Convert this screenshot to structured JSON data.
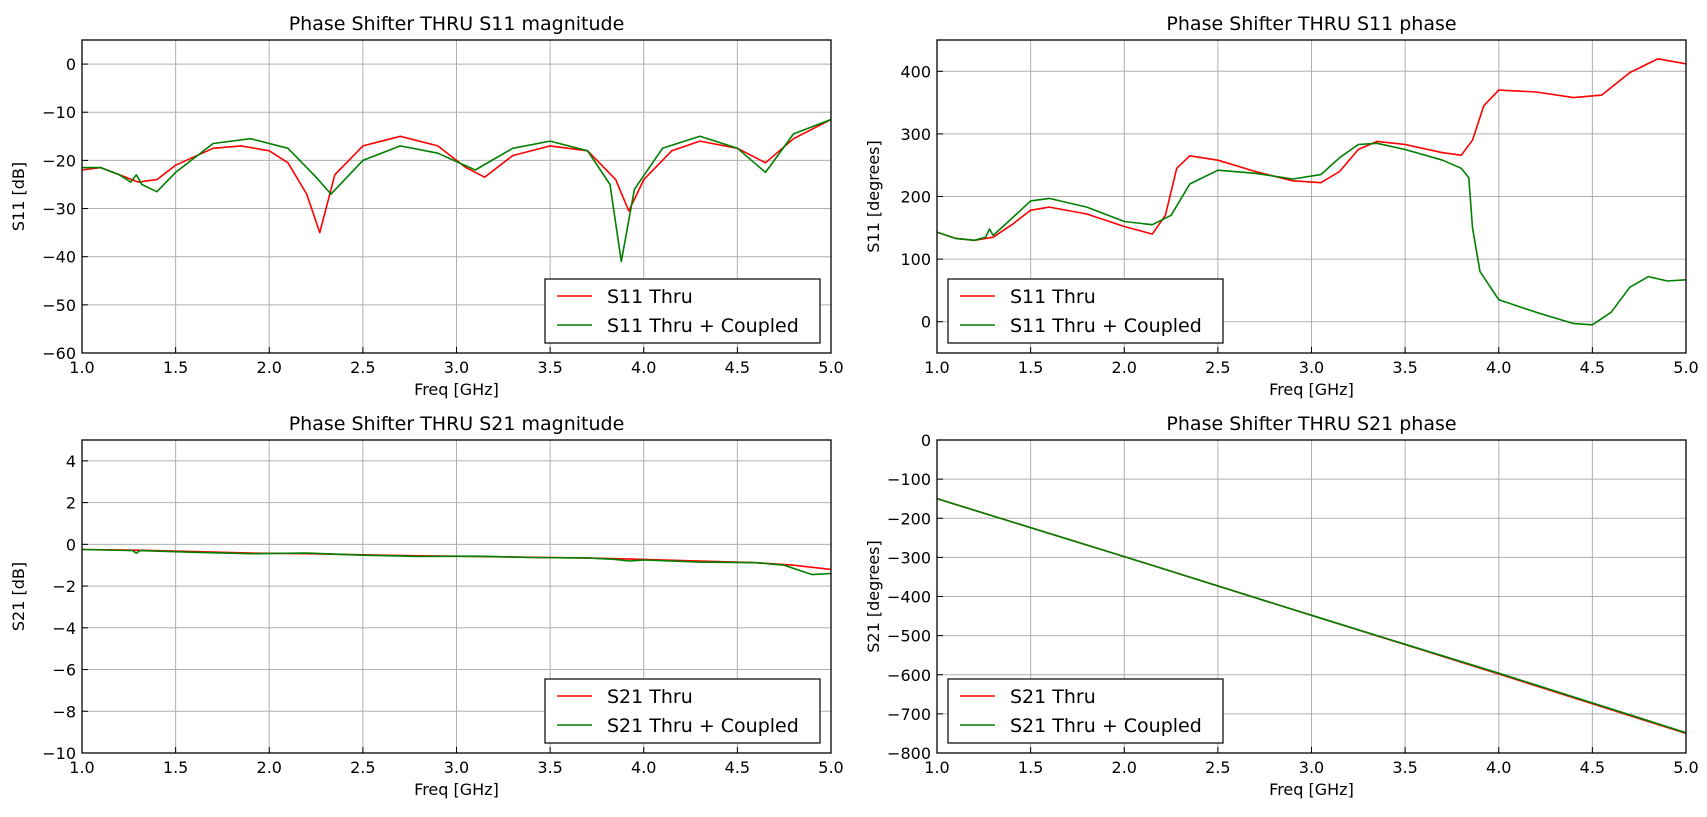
{
  "chart_data": [
    {
      "type": "line",
      "title": "Phase Shifter THRU S11 magnitude",
      "xlabel": "Freq [GHz]",
      "ylabel": "S11 [dB]",
      "xlim": [
        1.0,
        5.0
      ],
      "ylim": [
        -60,
        5
      ],
      "xticks": [
        1.0,
        1.5,
        2.0,
        2.5,
        3.0,
        3.5,
        4.0,
        4.5,
        5.0
      ],
      "yticks": [
        0,
        -10,
        -20,
        -30,
        -40,
        -50,
        -60
      ],
      "grid": true,
      "legend_position": "bottom-right",
      "series": [
        {
          "name": "S11 Thru",
          "color": "#ff0000",
          "x": [
            1.0,
            1.1,
            1.2,
            1.3,
            1.4,
            1.5,
            1.7,
            1.85,
            2.0,
            2.1,
            2.2,
            2.27,
            2.35,
            2.5,
            2.7,
            2.9,
            3.05,
            3.15,
            3.3,
            3.5,
            3.7,
            3.85,
            3.92,
            4.0,
            4.15,
            4.3,
            4.5,
            4.65,
            4.8,
            5.0
          ],
          "y": [
            -22,
            -21.5,
            -23,
            -24.5,
            -24,
            -21,
            -17.5,
            -17,
            -18,
            -20.5,
            -27,
            -35,
            -23,
            -17,
            -15,
            -17,
            -21.5,
            -23.5,
            -19,
            -17,
            -18,
            -24,
            -30.5,
            -24,
            -18,
            -16,
            -17.5,
            -20.5,
            -15.5,
            -11.5
          ]
        },
        {
          "name": "S11 Thru + Coupled",
          "color": "#007f00",
          "x": [
            1.0,
            1.1,
            1.2,
            1.26,
            1.29,
            1.32,
            1.4,
            1.5,
            1.7,
            1.9,
            2.1,
            2.25,
            2.33,
            2.5,
            2.7,
            2.9,
            3.1,
            3.3,
            3.5,
            3.7,
            3.82,
            3.88,
            3.95,
            4.1,
            4.3,
            4.5,
            4.65,
            4.8,
            5.0
          ],
          "y": [
            -21.5,
            -21.5,
            -23,
            -24.5,
            -23,
            -25,
            -26.5,
            -22.5,
            -16.5,
            -15.5,
            -17.5,
            -23.5,
            -27,
            -20,
            -17,
            -18.5,
            -22,
            -17.5,
            -16,
            -18,
            -25,
            -41,
            -26,
            -17.5,
            -15,
            -17.5,
            -22.5,
            -14.5,
            -11.5
          ]
        }
      ]
    },
    {
      "type": "line",
      "title": "Phase Shifter THRU S11 phase",
      "xlabel": "Freq [GHz]",
      "ylabel": "S11 [degrees]",
      "xlim": [
        1.0,
        5.0
      ],
      "ylim": [
        -50,
        450
      ],
      "xticks": [
        1.0,
        1.5,
        2.0,
        2.5,
        3.0,
        3.5,
        4.0,
        4.5,
        5.0
      ],
      "yticks": [
        0,
        100,
        200,
        300,
        400
      ],
      "grid": true,
      "legend_position": "bottom-left",
      "series": [
        {
          "name": "S11 Thru",
          "color": "#ff0000",
          "x": [
            1.0,
            1.1,
            1.2,
            1.3,
            1.4,
            1.5,
            1.6,
            1.8,
            2.0,
            2.15,
            2.22,
            2.28,
            2.35,
            2.5,
            2.7,
            2.9,
            3.05,
            3.15,
            3.25,
            3.35,
            3.5,
            3.7,
            3.8,
            3.86,
            3.92,
            4.0,
            4.2,
            4.4,
            4.55,
            4.7,
            4.85,
            5.0
          ],
          "y": [
            143,
            133,
            130,
            135,
            155,
            178,
            183,
            172,
            152,
            140,
            170,
            245,
            265,
            258,
            240,
            225,
            222,
            240,
            275,
            288,
            283,
            270,
            266,
            290,
            345,
            370,
            367,
            358,
            362,
            398,
            420,
            412
          ]
        },
        {
          "name": "S11 Thru + Coupled",
          "color": "#007f00",
          "x": [
            1.0,
            1.1,
            1.2,
            1.26,
            1.28,
            1.3,
            1.4,
            1.5,
            1.6,
            1.8,
            2.0,
            2.15,
            2.25,
            2.35,
            2.5,
            2.7,
            2.9,
            3.05,
            3.15,
            3.25,
            3.35,
            3.5,
            3.7,
            3.8,
            3.84,
            3.86,
            3.9,
            4.0,
            4.2,
            4.4,
            4.5,
            4.6,
            4.7,
            4.8,
            4.9,
            5.0
          ],
          "y": [
            143,
            133,
            130,
            135,
            148,
            138,
            165,
            193,
            197,
            183,
            160,
            155,
            170,
            220,
            242,
            237,
            228,
            235,
            262,
            283,
            285,
            275,
            258,
            245,
            230,
            150,
            80,
            35,
            15,
            -3,
            -5,
            15,
            55,
            72,
            65,
            67
          ]
        }
      ]
    },
    {
      "type": "line",
      "title": "Phase Shifter THRU S21 magnitude",
      "xlabel": "Freq [GHz]",
      "ylabel": "S21 [dB]",
      "xlim": [
        1.0,
        5.0
      ],
      "ylim": [
        -10,
        5
      ],
      "xticks": [
        1.0,
        1.5,
        2.0,
        2.5,
        3.0,
        3.5,
        4.0,
        4.5,
        5.0
      ],
      "yticks": [
        4,
        2,
        0,
        -2,
        -4,
        -6,
        -8,
        -10
      ],
      "grid": true,
      "legend_position": "bottom-right",
      "series": [
        {
          "name": "S21 Thru",
          "color": "#ff0000",
          "x": [
            1.0,
            1.3,
            1.6,
            1.9,
            2.2,
            2.5,
            2.8,
            3.1,
            3.4,
            3.7,
            4.0,
            4.3,
            4.6,
            4.8,
            5.0
          ],
          "y": [
            -0.25,
            -0.28,
            -0.35,
            -0.42,
            -0.45,
            -0.5,
            -0.55,
            -0.58,
            -0.62,
            -0.66,
            -0.72,
            -0.8,
            -0.88,
            -1.0,
            -1.2
          ]
        },
        {
          "name": "S21 Thru + Coupled",
          "color": "#007f00",
          "x": [
            1.0,
            1.27,
            1.29,
            1.31,
            1.6,
            1.9,
            2.2,
            2.5,
            2.8,
            3.1,
            3.4,
            3.7,
            3.85,
            3.92,
            4.0,
            4.3,
            4.6,
            4.75,
            4.9,
            5.0
          ],
          "y": [
            -0.25,
            -0.3,
            -0.42,
            -0.3,
            -0.38,
            -0.45,
            -0.42,
            -0.52,
            -0.58,
            -0.57,
            -0.63,
            -0.65,
            -0.72,
            -0.8,
            -0.75,
            -0.85,
            -0.88,
            -1.0,
            -1.45,
            -1.4
          ]
        }
      ]
    },
    {
      "type": "line",
      "title": "Phase Shifter THRU S21 phase",
      "xlabel": "Freq [GHz]",
      "ylabel": "S21 [degrees]",
      "xlim": [
        1.0,
        5.0
      ],
      "ylim": [
        -800,
        0
      ],
      "xticks": [
        1.0,
        1.5,
        2.0,
        2.5,
        3.0,
        3.5,
        4.0,
        4.5,
        5.0
      ],
      "yticks": [
        0,
        -100,
        -200,
        -300,
        -400,
        -500,
        -600,
        -700,
        -800
      ],
      "grid": true,
      "legend_position": "bottom-left",
      "series": [
        {
          "name": "S21 Thru",
          "color": "#ff0000",
          "x": [
            1.0,
            2.0,
            3.0,
            4.0,
            5.0
          ],
          "y": [
            -150,
            -298,
            -448,
            -598,
            -750
          ]
        },
        {
          "name": "S21 Thru + Coupled",
          "color": "#007f00",
          "x": [
            1.0,
            2.0,
            3.0,
            4.0,
            5.0
          ],
          "y": [
            -150,
            -298,
            -448,
            -596,
            -748
          ]
        }
      ]
    }
  ]
}
